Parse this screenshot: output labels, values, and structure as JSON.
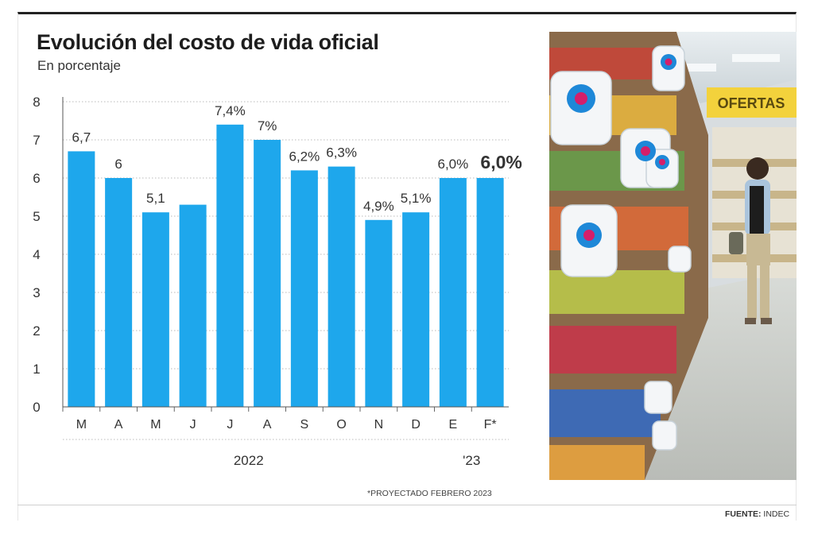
{
  "chart_data": {
    "type": "bar",
    "title": "Evolución del costo de vida oficial",
    "subtitle": "En porcentaje",
    "categories": [
      "M",
      "A",
      "M",
      "J",
      "J",
      "A",
      "S",
      "O",
      "N",
      "D",
      "E",
      "F*"
    ],
    "values": [
      6.7,
      6.0,
      5.1,
      5.3,
      7.4,
      7.0,
      6.2,
      6.3,
      4.9,
      5.1,
      6.0,
      6.0
    ],
    "value_labels": [
      "6,7",
      "6",
      "5,1",
      "",
      "7,4%",
      "7%",
      "6,2%",
      "6,3%",
      "4,9%",
      "5,1%",
      "6,0%",
      "6,0%"
    ],
    "highlight_last_label": true,
    "year_groups": [
      {
        "label": "2022",
        "from": 0,
        "to": 9
      },
      {
        "label": "'23",
        "from": 10,
        "to": 11
      }
    ],
    "ylim": [
      0,
      8
    ],
    "yticks": [
      0,
      1,
      2,
      3,
      4,
      5,
      6,
      7,
      8
    ],
    "grid": true,
    "bar_color": "#1ea7ec"
  },
  "footnote": "*PROYECTADO FEBRERO 2023",
  "source": {
    "label": "FUENTE:",
    "value": "INDEC"
  },
  "photo": {
    "sign_text": "OFERTAS",
    "icon_name": "precios-cuidados-photo"
  }
}
